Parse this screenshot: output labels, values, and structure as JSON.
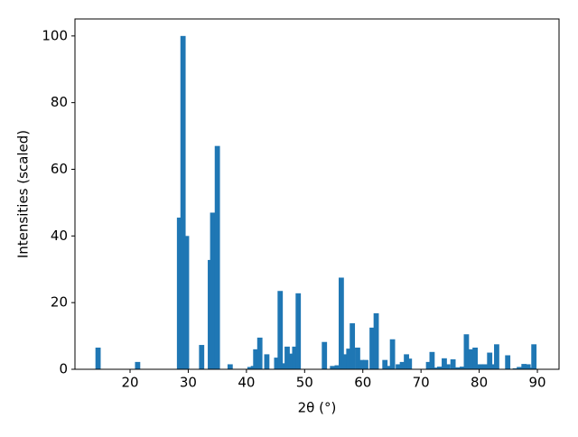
{
  "chart_data": {
    "type": "bar",
    "xlabel": "2θ (°)",
    "ylabel": "Intensities (scaled)",
    "color": "#1f77b4",
    "x": [
      14.5,
      21.3,
      28.5,
      29.1,
      29.7,
      32.3,
      33.8,
      34.2,
      35.0,
      37.2,
      40.6,
      41.2,
      41.6,
      42.3,
      43.5,
      45.2,
      45.8,
      46.4,
      47.0,
      47.7,
      48.3,
      48.9,
      53.4,
      54.8,
      55.6,
      56.3,
      56.9,
      57.6,
      58.2,
      59.1,
      59.8,
      60.5,
      61.6,
      62.3,
      63.8,
      64.5,
      65.1,
      66.1,
      66.8,
      67.5,
      68.0,
      71.3,
      71.9,
      72.6,
      73.2,
      74.0,
      74.6,
      75.5,
      76.4,
      77.1,
      77.8,
      78.5,
      79.3,
      80.2,
      81.0,
      81.8,
      82.6,
      83.0,
      84.9,
      86.2,
      86.9,
      87.7,
      88.4,
      89.0,
      89.4
    ],
    "values": [
      6.5,
      2.2,
      45.5,
      100,
      40,
      7.3,
      32.8,
      47,
      67,
      1.5,
      0.7,
      1.0,
      6,
      9.5,
      4.5,
      3.5,
      23.5,
      1.8,
      6.8,
      4.7,
      6.8,
      22.8,
      8.2,
      1,
      1.2,
      27.5,
      4.5,
      6.2,
      13.8,
      6.5,
      2.8,
      2.8,
      12.5,
      16.8,
      2.8,
      1,
      9,
      1.5,
      2.2,
      4.5,
      3.2,
      2.2,
      5.2,
      0.5,
      0.8,
      3.3,
      1.5,
      3,
      0.6,
      0.8,
      10.5,
      6,
      6.5,
      1.5,
      1.5,
      5,
      1.5,
      7.5,
      4.2,
      0.3,
      0.7,
      1.6,
      1.5,
      0.5,
      7.5
    ],
    "xlim": [
      10.53,
      93.72
    ],
    "xticks": [
      20,
      30,
      40,
      50,
      60,
      70,
      80,
      90
    ],
    "ylim": [
      0,
      105.1
    ],
    "yticks": [
      0,
      20,
      40,
      60,
      80,
      100
    ]
  }
}
